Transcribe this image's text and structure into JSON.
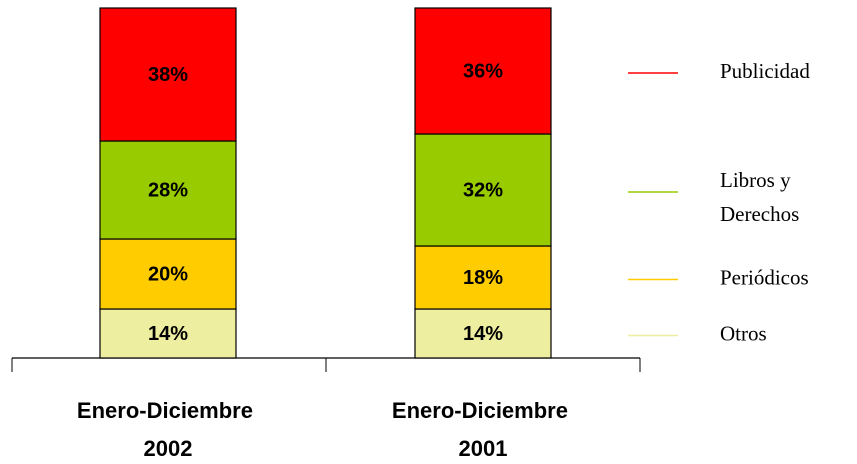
{
  "chart_data": {
    "type": "stacked_bar",
    "categories": [
      "Enero-Diciembre 2002",
      "Enero-Diciembre 2001"
    ],
    "ylim": [
      0,
      100
    ],
    "series": [
      {
        "name": "Otros",
        "color": "#eeeea0",
        "values": [
          14,
          14
        ],
        "value_labels": [
          "14%",
          "14%"
        ]
      },
      {
        "name": "Periódicos",
        "color": "#ffcc00",
        "values": [
          20,
          18
        ],
        "value_labels": [
          "20%",
          "18%"
        ]
      },
      {
        "name": "Libros y Derechos",
        "color": "#99cc00",
        "values": [
          28,
          32
        ],
        "value_labels": [
          "28%",
          "32%"
        ]
      },
      {
        "name": "Publicidad",
        "color": "#ff0000",
        "values": [
          38,
          36
        ],
        "value_labels": [
          "38%",
          "36%"
        ]
      }
    ]
  }
}
